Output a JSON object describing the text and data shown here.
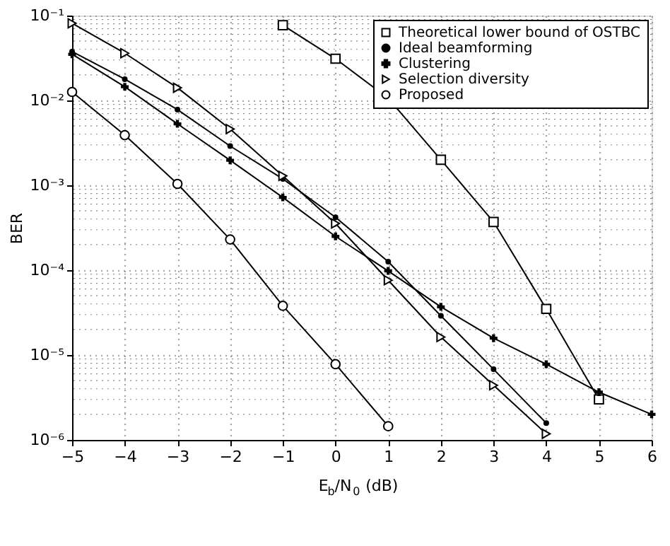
{
  "chart_data": {
    "type": "line",
    "xlabel": "E$_{b}$/N$_{0}$ (dB)",
    "ylabel": "BER",
    "x": [
      -5,
      -4,
      -3,
      -2,
      -1,
      0,
      1,
      2,
      3,
      4,
      5,
      6
    ],
    "series": [
      {
        "name": "Theoretical lower bound of OSTBC",
        "color": "#000000",
        "marker": "square",
        "values": [
          null,
          null,
          null,
          null,
          0.077,
          0.031,
          0.0106,
          0.002,
          0.00037,
          3.5e-05,
          3e-06,
          null
        ]
      },
      {
        "name": "Ideal beamforming",
        "color": "#000000",
        "marker": "circle",
        "values": [
          0.0376,
          0.0178,
          0.0078,
          0.0029,
          0.00119,
          0.00042,
          0.000126,
          2.9e-05,
          6.8e-06,
          1.58e-06,
          null,
          null
        ]
      },
      {
        "name": "Clustering",
        "color": "#000000",
        "marker": "cross",
        "values": [
          0.035,
          0.0145,
          0.0053,
          0.00197,
          0.00072,
          0.00025,
          9.8e-05,
          3.7e-05,
          1.58e-05,
          7.8e-06,
          3.65e-06,
          2e-06
        ]
      },
      {
        "name": "Selection diversity",
        "color": "#000000",
        "marker": "triangle",
        "values": [
          0.081,
          0.036,
          0.0141,
          0.0046,
          0.00129,
          0.000355,
          7.6e-05,
          1.63e-05,
          4.4e-06,
          1.18e-06,
          null,
          null
        ]
      },
      {
        "name": "Proposed",
        "color": "#000000",
        "marker": "circle",
        "values": [
          0.0126,
          0.0039,
          0.00104,
          0.00023,
          3.8e-05,
          7.8e-06,
          1.45e-06,
          null,
          null,
          null,
          null,
          null
        ]
      }
    ],
    "log": "y",
    "xlim": [
      -5,
      6
    ],
    "ylim": [
      1e-06,
      0.1
    ],
    "xticks": [
      -5,
      -4,
      -3,
      -2,
      -1,
      0,
      1,
      2,
      3,
      4,
      5,
      6
    ],
    "yticks": [
      {
        "value": 1e-06,
        "label": "10⁻⁶"
      },
      {
        "value": 1e-05,
        "label": "10⁻⁵"
      },
      {
        "value": 0.0001,
        "label": "10⁻⁴"
      },
      {
        "value": 0.001,
        "label": "10⁻³"
      },
      {
        "value": 0.01,
        "label": "10⁻²"
      },
      {
        "value": 0.1,
        "label": "10⁻¹"
      }
    ],
    "grid": true,
    "legend": "top right",
    "line_style": "solid"
  }
}
